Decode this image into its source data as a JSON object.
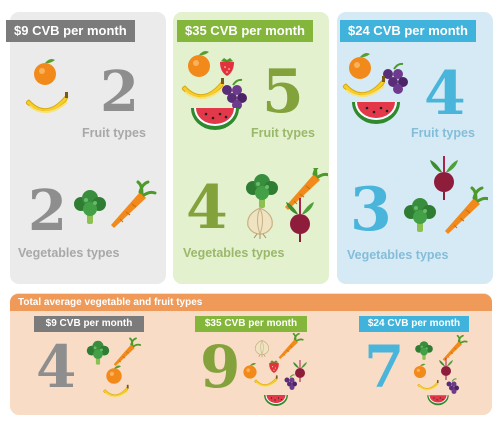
{
  "plans": [
    {
      "header": "$9 CVB per month",
      "fruit_count": "2",
      "fruit_label": "Fruit types",
      "veg_count": "2",
      "veg_label": "Vegetables types",
      "color": "#7b7b7b",
      "panel_bg": "#ebebeb",
      "number_color": "#8e8e8e"
    },
    {
      "header": "$35 CVB per month",
      "fruit_count": "5",
      "fruit_label": "Fruit types",
      "veg_count": "4",
      "veg_label": "Vegetables types",
      "color": "#84b63c",
      "panel_bg": "#e3f1cf",
      "number_color": "#84a23c"
    },
    {
      "header": "$24 CVB per month",
      "fruit_count": "4",
      "fruit_label": "Fruit types",
      "veg_count": "3",
      "veg_label": "Vegetables types",
      "color": "#3fb3dc",
      "panel_bg": "#d6eaf6",
      "number_color": "#4ab5db"
    }
  ],
  "total": {
    "title": "Total average vegetable and fruit types",
    "color": "#ef9a59",
    "panel_bg": "#f9dcc6",
    "items": [
      {
        "tag": "$9 CVB per month",
        "number": "4"
      },
      {
        "tag": "$35 CVB per month",
        "number": "9"
      },
      {
        "tag": "$24 CVB per month",
        "number": "7"
      }
    ]
  },
  "icons": [
    "orange-icon",
    "banana-icon",
    "strawberry-icon",
    "grapes-icon",
    "watermelon-icon",
    "broccoli-icon",
    "carrot-icon",
    "onion-icon",
    "beet-icon"
  ]
}
